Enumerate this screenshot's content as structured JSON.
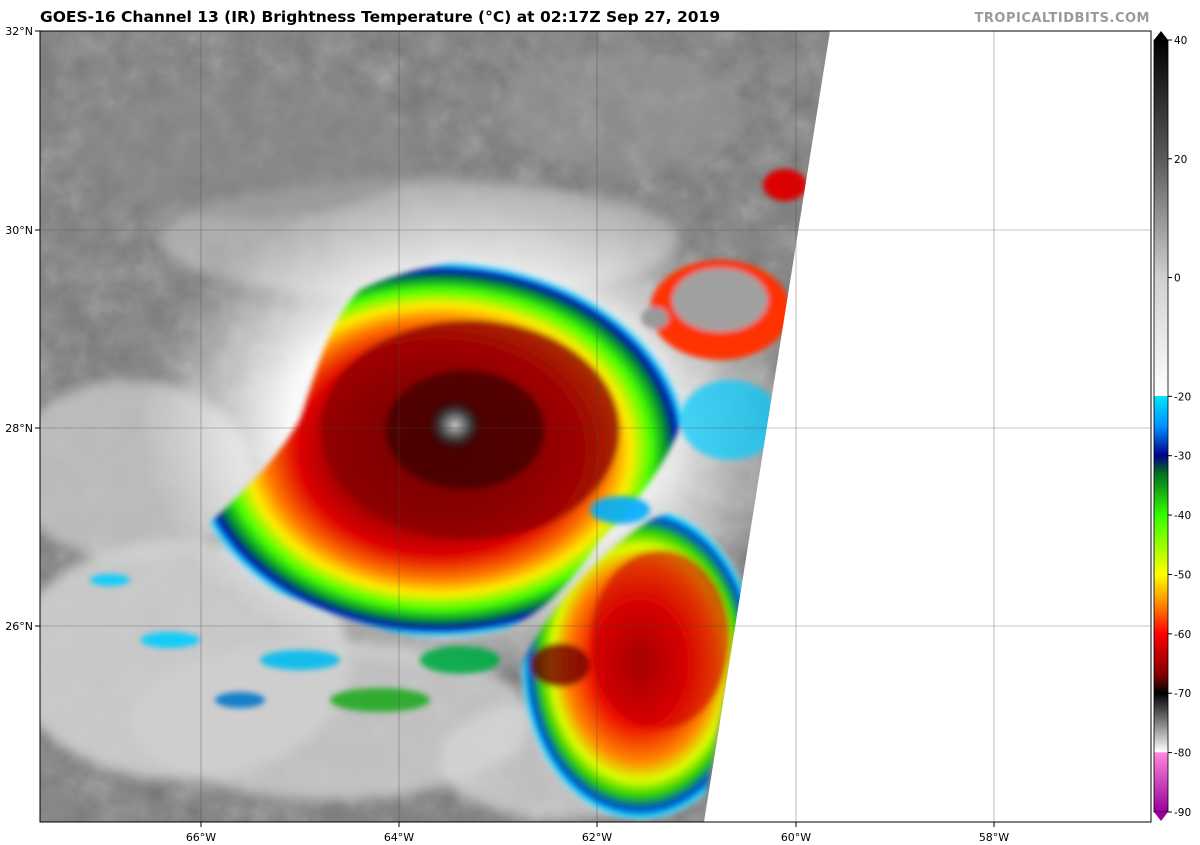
{
  "title": "GOES-16 Channel 13 (IR) Brightness Temperature (°C) at 02:17Z Sep 27, 2019",
  "brand": "TROPICALTIDBITS.COM",
  "map": {
    "lat_labels": [
      "32°N",
      "30°N",
      "28°N",
      "26°N"
    ],
    "lon_labels": [
      "66°W",
      "64°W",
      "62°W",
      "60°W",
      "58°W"
    ]
  },
  "colorbar": {
    "tick_labels": [
      "40",
      "20",
      "0",
      "-20",
      "-30",
      "-40",
      "-50",
      "-60",
      "-70",
      "-80",
      "-90"
    ],
    "stops": [
      {
        "t": 40,
        "c": "#000000"
      },
      {
        "t": 20,
        "c": "#5a5a5a"
      },
      {
        "t": 0,
        "c": "#d0d0d0"
      },
      {
        "t": -19.9,
        "c": "#ffffff"
      },
      {
        "t": -20,
        "c": "#00e5ff"
      },
      {
        "t": -25,
        "c": "#0090ff"
      },
      {
        "t": -30,
        "c": "#000088"
      },
      {
        "t": -33,
        "c": "#007020"
      },
      {
        "t": -40,
        "c": "#33ff00"
      },
      {
        "t": -50,
        "c": "#ffff00"
      },
      {
        "t": -55,
        "c": "#ff8800"
      },
      {
        "t": -60,
        "c": "#ff0000"
      },
      {
        "t": -67,
        "c": "#800000"
      },
      {
        "t": -70,
        "c": "#000000"
      },
      {
        "t": -79.9,
        "c": "#ffffff"
      },
      {
        "t": -80,
        "c": "#ff88dd"
      },
      {
        "t": -90,
        "c": "#990099"
      }
    ]
  },
  "colors": {
    "background_cloud_gray": "#7a7a7a",
    "no_data": "#ffffff",
    "grid": "#444444"
  }
}
